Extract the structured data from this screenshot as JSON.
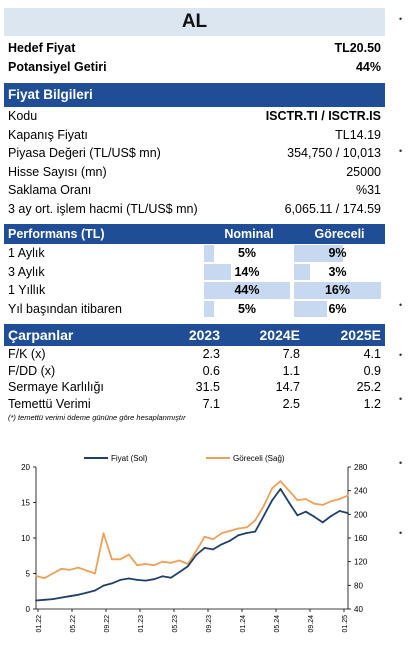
{
  "recommendation": "AL",
  "summary": [
    {
      "label": "Hedef Fiyat",
      "value": "TL20.50"
    },
    {
      "label": "Potansiyel Getiri",
      "value": "44%"
    }
  ],
  "price_info": {
    "title": "Fiyat Bilgileri",
    "rows": [
      {
        "label": "Kodu",
        "value": "ISCTR.TI / ISCTR.IS",
        "bold": true
      },
      {
        "label": "Kapanış Fiyatı",
        "value": "TL14.19"
      },
      {
        "label": "Piyasa Değeri (TL/US$ mn)",
        "value": "354,750 / 10,013"
      },
      {
        "label": "Hisse Sayısı (mn)",
        "value": "25000"
      },
      {
        "label": "Saklama Oranı",
        "value": "%31"
      },
      {
        "label": "3 ay ort. işlem hacmi (TL/US$ mn)",
        "value": "6,065.11 / 174.59"
      }
    ]
  },
  "performance": {
    "title": "Performans (TL)",
    "col_nominal": "Nominal",
    "col_relative": "Göreceli",
    "rows": [
      {
        "label": "1 Aylık",
        "nominal": "5%",
        "relative": "9%",
        "nominal_pct": 5,
        "relative_pct": 9
      },
      {
        "label": "3 Aylık",
        "nominal": "14%",
        "relative": "3%",
        "nominal_pct": 14,
        "relative_pct": 3
      },
      {
        "label": "1 Yıllık",
        "nominal": "44%",
        "relative": "16%",
        "nominal_pct": 44,
        "relative_pct": 16
      },
      {
        "label": "Yıl başından itibaren",
        "nominal": "5%",
        "relative": "6%",
        "nominal_pct": 5,
        "relative_pct": 6
      }
    ]
  },
  "multiples": {
    "title": "Çarpanlar",
    "years": [
      "2023",
      "2024E",
      "2025E"
    ],
    "rows": [
      {
        "label": "F/K (x)",
        "values": [
          "2.3",
          "7.8",
          "4.1"
        ]
      },
      {
        "label": "F/DD (x)",
        "values": [
          "0.6",
          "1.1",
          "0.9"
        ]
      },
      {
        "label": "Sermaye Karlılığı",
        "values": [
          "31.5",
          "14.7",
          "25.2"
        ]
      },
      {
        "label": "Temettü Verimi",
        "values": [
          "7.1",
          "2.5",
          "1.2"
        ]
      }
    ],
    "note": "(*) temettü verimi ödeme gününe göre hesaplanmıştır"
  },
  "colors": {
    "header": "#1f4e96",
    "band": "#dce6f1",
    "bar": "#c6d9f0",
    "price_line": "#1f3f6e",
    "relative_line": "#f0a058"
  },
  "chart_data": {
    "type": "line",
    "legend": [
      "Fiyat (Sol)",
      "Göreceli (Sağ)"
    ],
    "legend_position": "top",
    "x_ticks": [
      "01.22",
      "05.22",
      "09.22",
      "01.23",
      "05.23",
      "09.23",
      "01.24",
      "05.24",
      "09.24",
      "01.25"
    ],
    "x": [
      "2022-01",
      "2022-02",
      "2022-03",
      "2022-04",
      "2022-05",
      "2022-06",
      "2022-07",
      "2022-08",
      "2022-09",
      "2022-10",
      "2022-11",
      "2022-12",
      "2023-01",
      "2023-02",
      "2023-03",
      "2023-04",
      "2023-05",
      "2023-06",
      "2023-07",
      "2023-08",
      "2023-09",
      "2023-10",
      "2023-11",
      "2023-12",
      "2024-01",
      "2024-02",
      "2024-03",
      "2024-04",
      "2024-05",
      "2024-06",
      "2024-07",
      "2024-08",
      "2024-09",
      "2024-10",
      "2024-11",
      "2024-12",
      "2025-01",
      "2025-02"
    ],
    "y_left_ticks": [
      "0",
      "5",
      "10",
      "15",
      "20"
    ],
    "y_left_range": [
      0,
      20
    ],
    "y_right_ticks": [
      "40",
      "80",
      "120",
      "160",
      "200",
      "240",
      "280"
    ],
    "y_right_range": [
      40,
      280
    ],
    "series": [
      {
        "name": "Fiyat (Sol)",
        "axis": "left",
        "values": [
          1.2,
          1.3,
          1.4,
          1.6,
          1.8,
          2.0,
          2.3,
          2.6,
          3.3,
          3.6,
          4.1,
          4.3,
          4.1,
          4.0,
          4.2,
          4.6,
          4.4,
          5.2,
          6.0,
          7.6,
          8.6,
          8.4,
          9.1,
          9.6,
          10.4,
          10.7,
          10.9,
          13.1,
          15.3,
          16.9,
          15.0,
          13.2,
          13.7,
          13.0,
          12.2,
          13.1,
          13.8,
          13.5
        ]
      },
      {
        "name": "Göreceli (Sağ)",
        "axis": "right",
        "values": [
          96,
          92,
          100,
          108,
          106,
          110,
          105,
          100,
          168,
          124,
          124,
          132,
          114,
          116,
          114,
          120,
          118,
          122,
          116,
          138,
          162,
          158,
          168,
          172,
          176,
          178,
          190,
          214,
          244,
          256,
          240,
          224,
          226,
          218,
          216,
          222,
          226,
          232
        ]
      }
    ]
  }
}
